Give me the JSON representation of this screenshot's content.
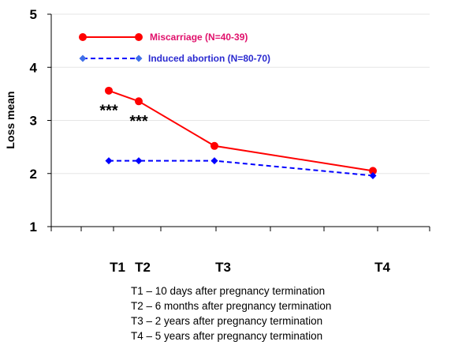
{
  "chart_data": {
    "type": "line",
    "title": "",
    "xlabel": "",
    "ylabel": "Loss mean",
    "ylim": [
      1,
      5
    ],
    "yticks": [
      1,
      2,
      3,
      4,
      5
    ],
    "x_tick_labels": [
      "T1",
      "T2",
      "T3",
      "T4"
    ],
    "x_positions": [
      1,
      2,
      4,
      8
    ],
    "gridlines": true,
    "series": [
      {
        "name": "Miscarriage (N=40-39)",
        "color": "#ff0000",
        "legend_color": "#e0106b",
        "line_style": "solid",
        "marker": "circle",
        "x": [
          1,
          2,
          4,
          8
        ],
        "values": [
          3.56,
          3.36,
          2.52,
          2.05
        ]
      },
      {
        "name": "Induced abortion (N=80-70)",
        "color": "#0000ff",
        "legend_color": "#2a2ad0",
        "line_style": "dashed",
        "marker": "diamond",
        "x": [
          1,
          2,
          4,
          8
        ],
        "values": [
          2.24,
          2.24,
          2.24,
          1.96
        ]
      }
    ],
    "annotations": [
      {
        "text": "***",
        "x": 1,
        "y": 3.27
      },
      {
        "text": "***",
        "x": 2,
        "y": 3.07
      }
    ],
    "legend_position": "top-left inside plot"
  },
  "notes": [
    "T1 – 10 days after pregnancy termination",
    "T2 – 6 months after pregnancy termination",
    "T3 – 2 years after pregnancy termination",
    "T4 – 5 years after pregnancy termination"
  ]
}
